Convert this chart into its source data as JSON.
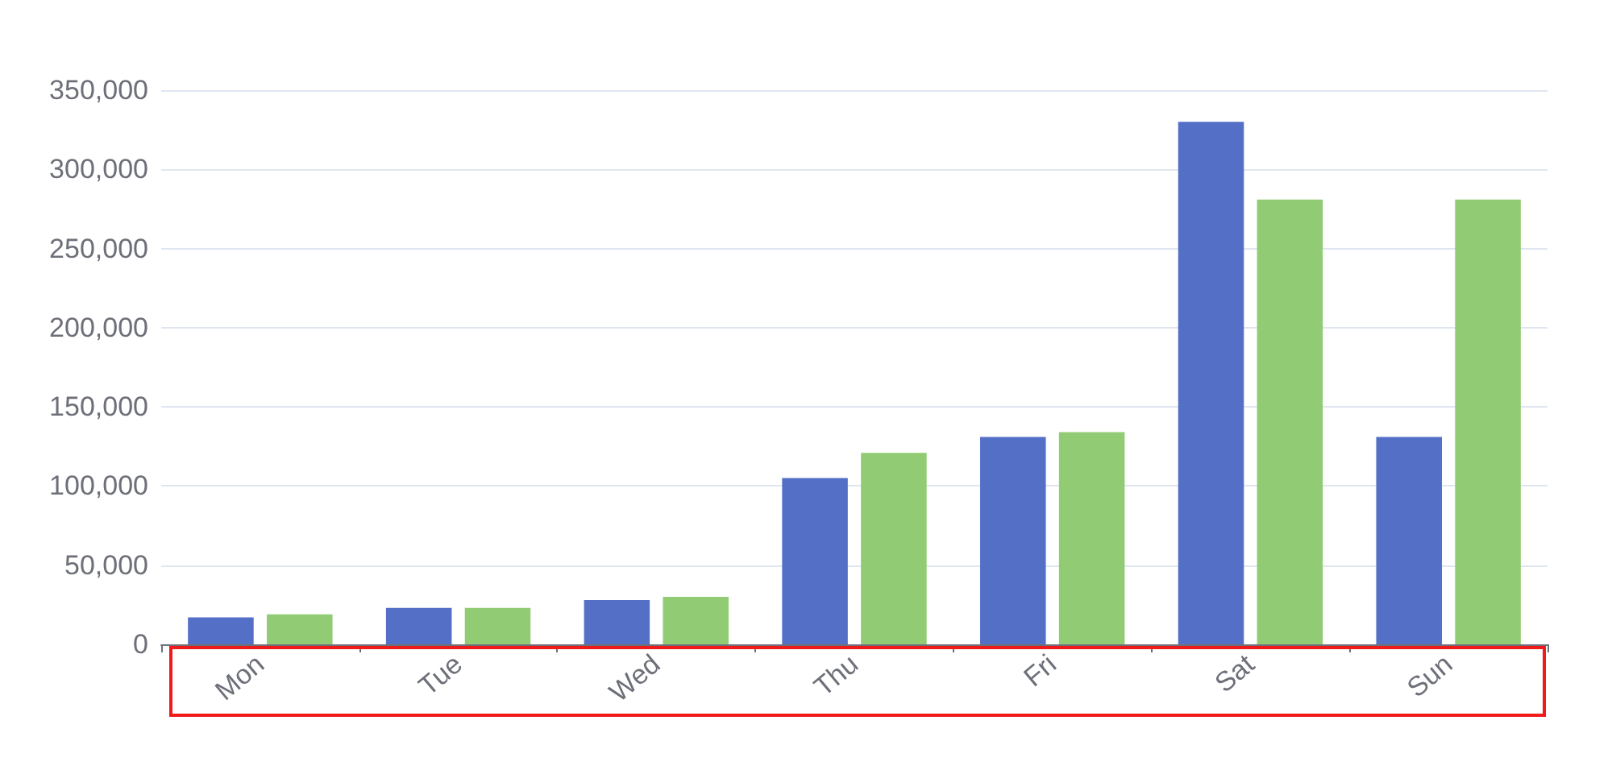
{
  "chart_data": {
    "type": "bar",
    "categories": [
      "Mon",
      "Tue",
      "Wed",
      "Thu",
      "Fri",
      "Sat",
      "Sun"
    ],
    "series": [
      {
        "color": "#5470c6",
        "values": [
          17000,
          23000,
          28000,
          105000,
          131000,
          330000,
          131000
        ]
      },
      {
        "color": "#91cc75",
        "values": [
          19000,
          23000,
          30000,
          121000,
          134000,
          281000,
          281000
        ]
      }
    ],
    "ylim": [
      0,
      350000
    ],
    "yticks": [
      0,
      {
        "value": 50000,
        "label": "50,000"
      },
      {
        "value": 100000,
        "label": "100,000"
      },
      {
        "value": 150000,
        "label": "150,000"
      },
      {
        "value": 200000,
        "label": "200,000"
      },
      {
        "value": 250000,
        "label": "250,000"
      },
      {
        "value": 300000,
        "label": "300,000"
      },
      {
        "value": 350000,
        "label": "350,000"
      }
    ],
    "grid": "y"
  }
}
